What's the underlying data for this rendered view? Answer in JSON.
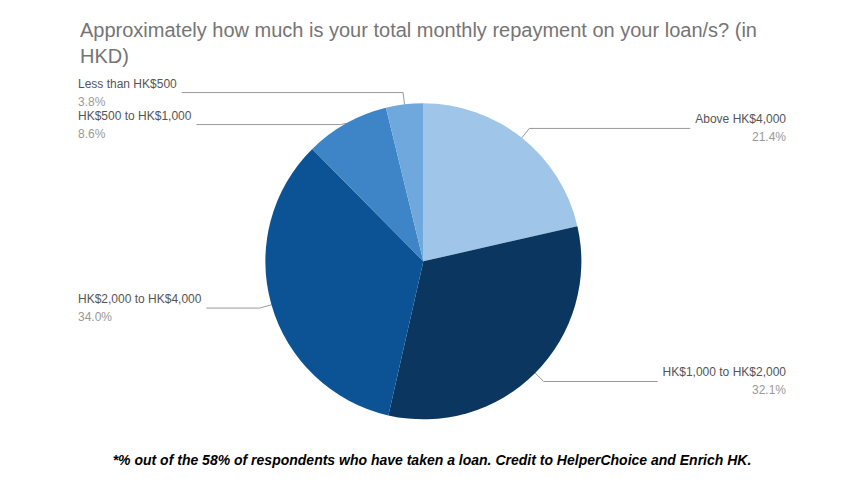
{
  "chart_data": {
    "type": "pie",
    "title": "Approximately how much is your total monthly repayment on your loan/s? (in HKD)",
    "annotations": [
      "*% out of the 58% of respondents who have taken a loan. Credit to HelperChoice and Enrich HK."
    ],
    "categories": [
      "Above HK$4,000",
      "HK$1,000 to HK$2,000",
      "HK$2,000 to HK$4,000",
      "HK$500 to HK$1,000",
      "Less than HK$500"
    ],
    "values": [
      21.4,
      32.1,
      34.0,
      8.6,
      3.8
    ],
    "value_labels": [
      "21.4%",
      "32.1%",
      "34.0%",
      "8.6%",
      "3.8%"
    ],
    "colors": [
      "#9fc5e8",
      "#0b365f",
      "#0b5394",
      "#3d85c6",
      "#6fa8dc"
    ],
    "data_labels": true
  }
}
